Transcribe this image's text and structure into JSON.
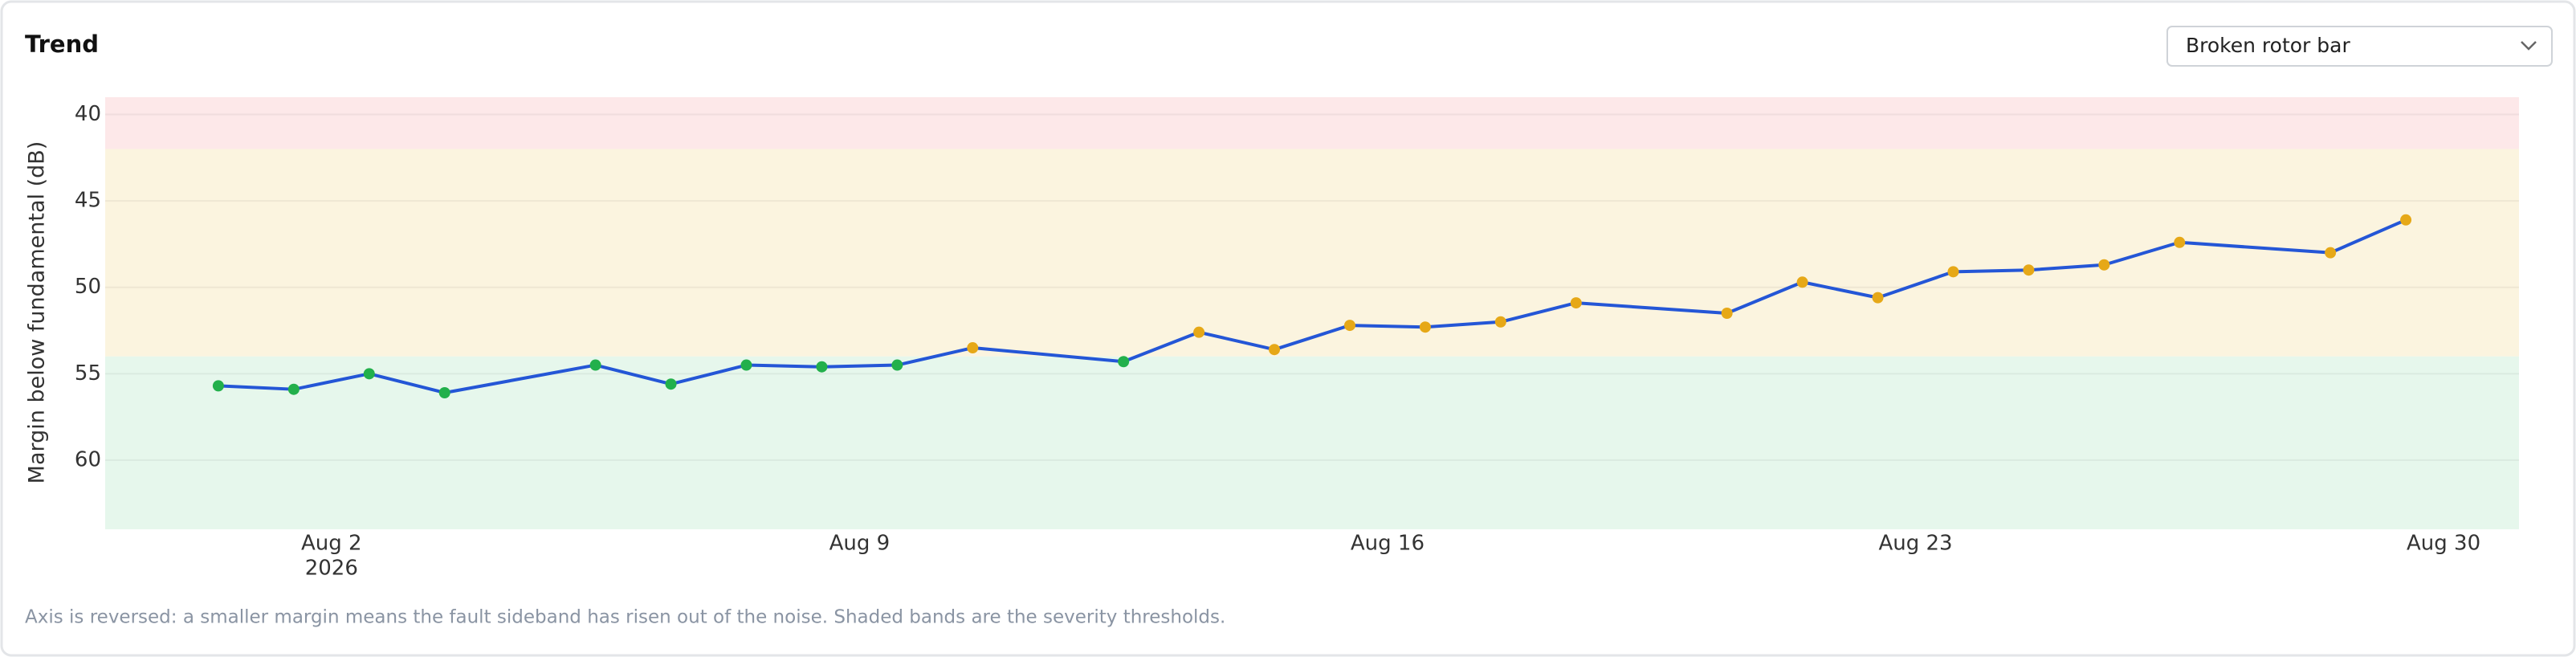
{
  "chart_data": {
    "type": "line",
    "title": "Trend",
    "dropdown": "Broken rotor bar",
    "ylabel": "Margin below fundamental (dB)",
    "note": "Axis is reversed: a smaller margin means the fault sideband has risen out of the noise. Shaded bands are the severity thresholds.",
    "y_reversed": true,
    "grid": true,
    "ylim": [
      39,
      64
    ],
    "yticks": [
      40,
      45,
      50,
      55,
      60
    ],
    "xlim": [
      "2026-07-30",
      "2026-08-31"
    ],
    "xticks": [
      {
        "value": "2026-08-02",
        "label": "Aug 2"
      },
      {
        "value": "2026-08-09",
        "label": "Aug 9"
      },
      {
        "value": "2026-08-16",
        "label": "Aug 16"
      },
      {
        "value": "2026-08-23",
        "label": "Aug 23"
      },
      {
        "value": "2026-08-30",
        "label": "Aug 30"
      }
    ],
    "x_year_label": "2026",
    "bands": [
      {
        "from": 39,
        "to": 42,
        "color": "#fde8e9"
      },
      {
        "from": 42,
        "to": 54,
        "color": "#fbf4df"
      },
      {
        "from": 54,
        "to": 64,
        "color": "#e6f7ec"
      }
    ],
    "band_marker_colors": [
      "#e5484d",
      "#e6a817",
      "#22b04b"
    ],
    "x": [
      "2026-07-31",
      "2026-08-01",
      "2026-08-02",
      "2026-08-03",
      "2026-08-05",
      "2026-08-06",
      "2026-08-07",
      "2026-08-08",
      "2026-08-09",
      "2026-08-10",
      "2026-08-12",
      "2026-08-13",
      "2026-08-14",
      "2026-08-15",
      "2026-08-16",
      "2026-08-17",
      "2026-08-18",
      "2026-08-20",
      "2026-08-21",
      "2026-08-22",
      "2026-08-23",
      "2026-08-24",
      "2026-08-25",
      "2026-08-26",
      "2026-08-28",
      "2026-08-29"
    ],
    "series": [
      {
        "name": "Margin",
        "color": "#2456d6",
        "values": [
          55.7,
          55.9,
          55.0,
          56.1,
          54.5,
          55.6,
          54.5,
          54.6,
          54.5,
          53.5,
          54.3,
          52.6,
          53.6,
          52.2,
          52.3,
          52.0,
          50.9,
          51.5,
          49.7,
          50.6,
          49.1,
          49.0,
          48.7,
          47.4,
          48.0,
          46.1
        ]
      }
    ]
  }
}
